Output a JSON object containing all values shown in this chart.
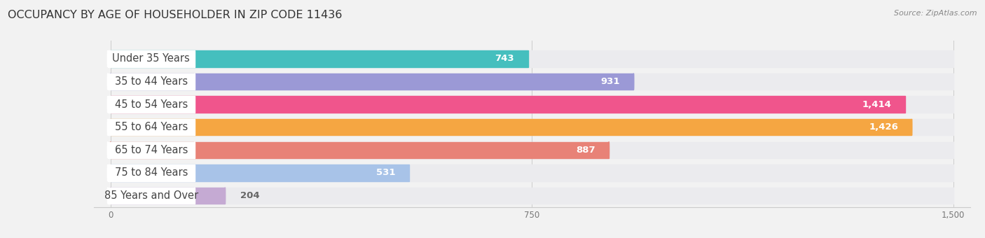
{
  "title": "OCCUPANCY BY AGE OF HOUSEHOLDER IN ZIP CODE 11436",
  "source": "Source: ZipAtlas.com",
  "categories": [
    "Under 35 Years",
    "35 to 44 Years",
    "45 to 54 Years",
    "55 to 64 Years",
    "65 to 74 Years",
    "75 to 84 Years",
    "85 Years and Over"
  ],
  "values": [
    743,
    931,
    1414,
    1426,
    887,
    531,
    204
  ],
  "colors": [
    "#45bfbe",
    "#9b99d6",
    "#f0558c",
    "#f5a642",
    "#e88277",
    "#a8c3e8",
    "#c5aad3"
  ],
  "xlim": [
    0,
    1500
  ],
  "xticks": [
    0,
    750,
    1500
  ],
  "bar_bg_color": "#ebebee",
  "background_color": "#f2f2f2",
  "title_fontsize": 11.5,
  "label_fontsize": 10.5,
  "value_fontsize": 9.5
}
